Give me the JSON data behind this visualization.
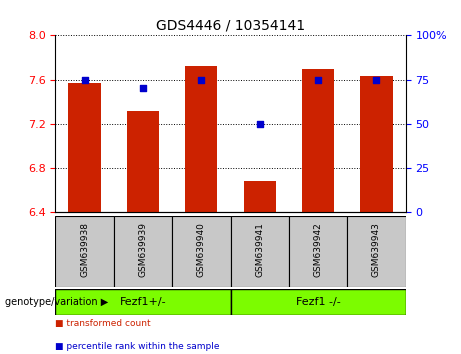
{
  "title": "GDS4446 / 10354141",
  "samples": [
    "GSM639938",
    "GSM639939",
    "GSM639940",
    "GSM639941",
    "GSM639942",
    "GSM639943"
  ],
  "bar_values": [
    7.57,
    7.32,
    7.72,
    6.68,
    7.7,
    7.63
  ],
  "percentile_values": [
    75,
    70,
    75,
    50,
    75,
    75
  ],
  "bar_color": "#cc2200",
  "percentile_color": "#0000cc",
  "ylim_left": [
    6.4,
    8.0
  ],
  "yticks_left": [
    6.4,
    6.8,
    7.2,
    7.6,
    8.0
  ],
  "ylim_right": [
    0,
    100
  ],
  "yticks_right": [
    0,
    25,
    50,
    75,
    100
  ],
  "groups": [
    {
      "label": "Fezf1+/-",
      "indices": [
        0,
        1,
        2
      ]
    },
    {
      "label": "Fezf1 -/-",
      "indices": [
        3,
        4,
        5
      ]
    }
  ],
  "group_color": "#7CFC00",
  "bottom_label": "genotype/variation",
  "legend_items": [
    {
      "label": "transformed count",
      "color": "#cc2200"
    },
    {
      "label": "percentile rank within the sample",
      "color": "#0000cc"
    }
  ],
  "xticklabel_bg": "#c8c8c8",
  "bar_bottom": 6.4
}
